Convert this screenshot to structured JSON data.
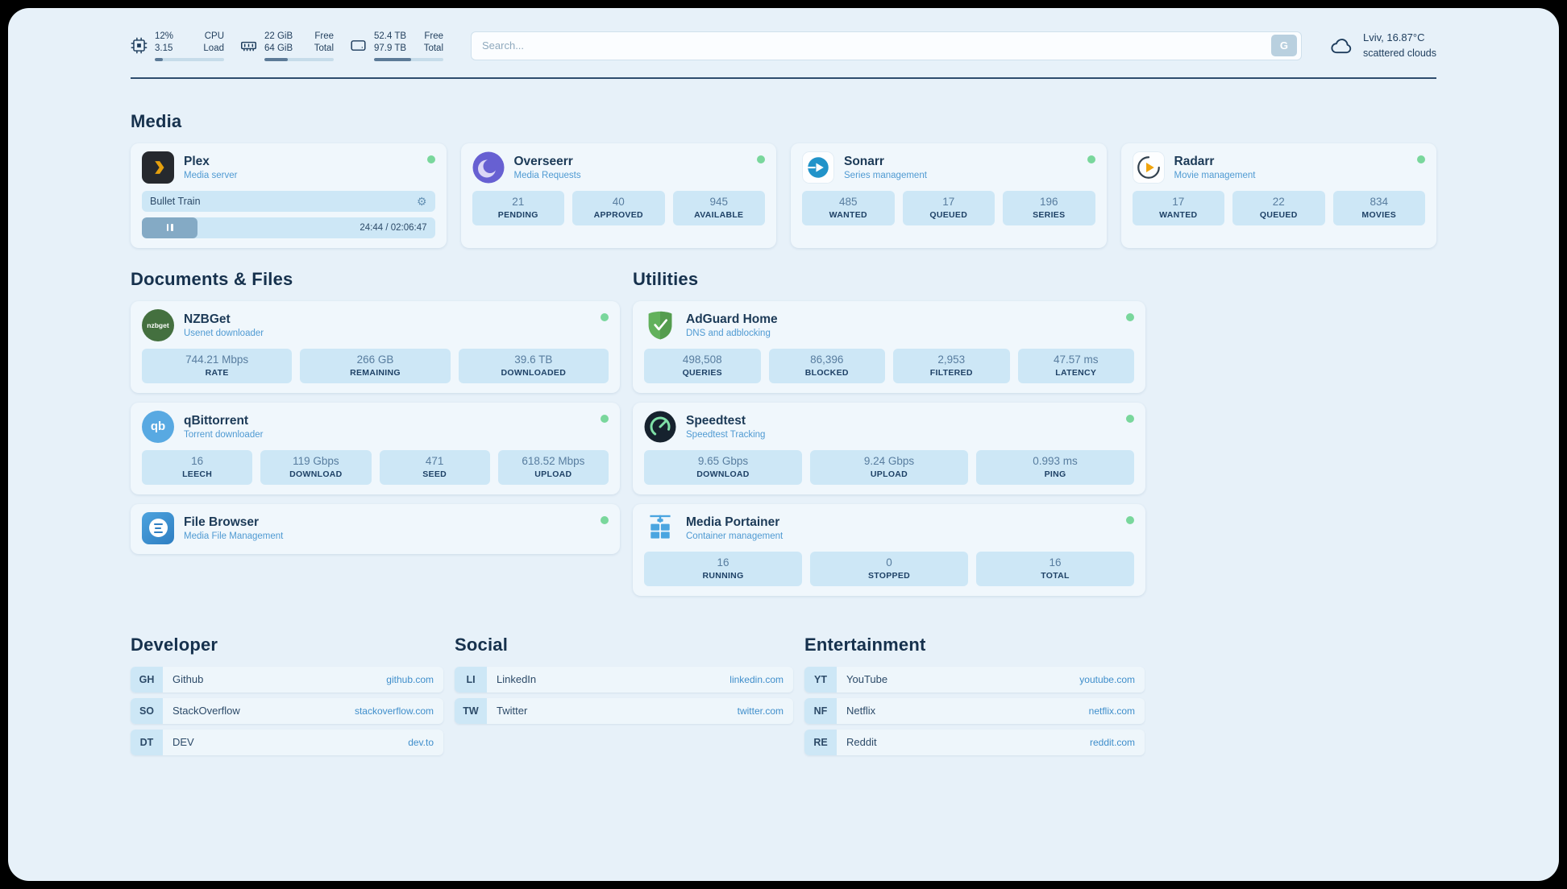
{
  "colors": {
    "accent": "#3e8fcc",
    "status_ok": "#79d79c",
    "stat_box_bg": "#cde7f6",
    "page_bg": "#e7f1f9",
    "heading": "#16314d",
    "link": "#3f8ecb"
  },
  "icons": {
    "gear": "⚙",
    "nzbget_text": "nzbget",
    "qbittorrent_text": "qb"
  },
  "topbar": {
    "resources": [
      {
        "name": "cpu",
        "row1_value": "12%",
        "row1_label": "CPU",
        "row2_value": "3.15",
        "row2_label": "Load",
        "progress_pct": 12
      },
      {
        "name": "memory",
        "row1_value": "22 GiB",
        "row1_label": "Free",
        "row2_value": "64 GiB",
        "row2_label": "Total",
        "progress_pct": 34
      },
      {
        "name": "disk",
        "row1_value": "52.4 TB",
        "row1_label": "Free",
        "row2_value": "97.9 TB",
        "row2_label": "Total",
        "progress_pct": 54
      }
    ],
    "search": {
      "placeholder": "Search...",
      "button_label": "G"
    },
    "weather": {
      "location": "Lviv, 16.87°C",
      "condition": "scattered clouds"
    }
  },
  "sections": {
    "media": {
      "title": "Media",
      "plex": {
        "name": "Plex",
        "subtitle": "Media server",
        "now_playing": "Bullet Train",
        "elapsed_total": "24:44 / 02:06:47",
        "progress_pct": 19
      },
      "overseerr": {
        "name": "Overseerr",
        "subtitle": "Media Requests",
        "stats": [
          {
            "value": "21",
            "label": "PENDING"
          },
          {
            "value": "40",
            "label": "APPROVED"
          },
          {
            "value": "945",
            "label": "AVAILABLE"
          }
        ]
      },
      "sonarr": {
        "name": "Sonarr",
        "subtitle": "Series management",
        "stats": [
          {
            "value": "485",
            "label": "WANTED"
          },
          {
            "value": "17",
            "label": "QUEUED"
          },
          {
            "value": "196",
            "label": "SERIES"
          }
        ]
      },
      "radarr": {
        "name": "Radarr",
        "subtitle": "Movie management",
        "stats": [
          {
            "value": "17",
            "label": "WANTED"
          },
          {
            "value": "22",
            "label": "QUEUED"
          },
          {
            "value": "834",
            "label": "MOVIES"
          }
        ]
      }
    },
    "documents": {
      "title": "Documents & Files",
      "nzbget": {
        "name": "NZBGet",
        "subtitle": "Usenet downloader",
        "stats": [
          {
            "value": "744.21 Mbps",
            "label": "RATE"
          },
          {
            "value": "266 GB",
            "label": "REMAINING"
          },
          {
            "value": "39.6 TB",
            "label": "DOWNLOADED"
          }
        ]
      },
      "qbittorrent": {
        "name": "qBittorrent",
        "subtitle": "Torrent downloader",
        "stats": [
          {
            "value": "16",
            "label": "LEECH"
          },
          {
            "value": "119 Gbps",
            "label": "DOWNLOAD"
          },
          {
            "value": "471",
            "label": "SEED"
          },
          {
            "value": "618.52 Mbps",
            "label": "UPLOAD"
          }
        ]
      },
      "filebrowser": {
        "name": "File Browser",
        "subtitle": "Media File Management"
      }
    },
    "utilities": {
      "title": "Utilities",
      "adguard": {
        "name": "AdGuard Home",
        "subtitle": "DNS and adblocking",
        "stats": [
          {
            "value": "498,508",
            "label": "QUERIES"
          },
          {
            "value": "86,396",
            "label": "BLOCKED"
          },
          {
            "value": "2,953",
            "label": "FILTERED"
          },
          {
            "value": "47.57 ms",
            "label": "LATENCY"
          }
        ]
      },
      "speedtest": {
        "name": "Speedtest",
        "subtitle": "Speedtest Tracking",
        "stats": [
          {
            "value": "9.65 Gbps",
            "label": "DOWNLOAD"
          },
          {
            "value": "9.24 Gbps",
            "label": "UPLOAD"
          },
          {
            "value": "0.993 ms",
            "label": "PING"
          }
        ]
      },
      "portainer": {
        "name": "Media Portainer",
        "subtitle": "Container management",
        "stats": [
          {
            "value": "16",
            "label": "RUNNING"
          },
          {
            "value": "0",
            "label": "STOPPED"
          },
          {
            "value": "16",
            "label": "TOTAL"
          }
        ]
      }
    }
  },
  "bookmarks": [
    {
      "title": "Developer",
      "items": [
        {
          "abbr": "GH",
          "name": "Github",
          "url": "github.com"
        },
        {
          "abbr": "SO",
          "name": "StackOverflow",
          "url": "stackoverflow.com"
        },
        {
          "abbr": "DT",
          "name": "DEV",
          "url": "dev.to"
        }
      ]
    },
    {
      "title": "Social",
      "items": [
        {
          "abbr": "LI",
          "name": "LinkedIn",
          "url": "linkedin.com"
        },
        {
          "abbr": "TW",
          "name": "Twitter",
          "url": "twitter.com"
        }
      ]
    },
    {
      "title": "Entertainment",
      "items": [
        {
          "abbr": "YT",
          "name": "YouTube",
          "url": "youtube.com"
        },
        {
          "abbr": "NF",
          "name": "Netflix",
          "url": "netflix.com"
        },
        {
          "abbr": "RE",
          "name": "Reddit",
          "url": "reddit.com"
        }
      ]
    }
  ]
}
